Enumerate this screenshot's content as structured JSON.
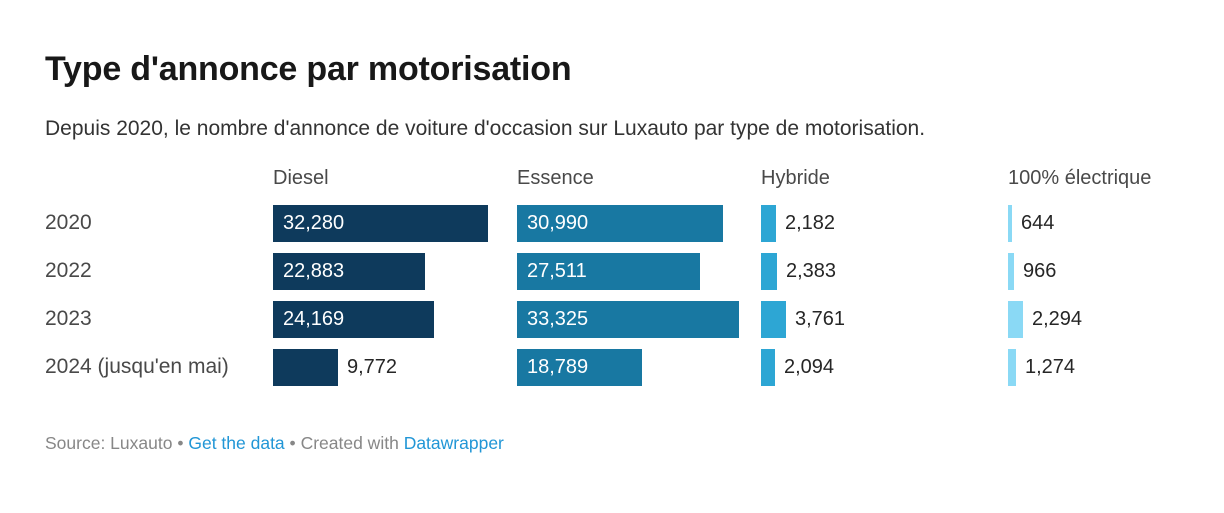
{
  "title": "Type d'annonce par motorisation",
  "subtitle": "Depuis 2020, le nombre d'annonce de voiture d'occasion sur Luxauto par type de motorisation.",
  "footer": {
    "source_text": "Source: Luxauto",
    "separator": "•",
    "get_data_link": "Get the data",
    "created_with_text": "Created with",
    "datawrapper_link": "Datawrapper"
  },
  "colors": {
    "title": "#181818",
    "subtitle": "#333333",
    "row_label": "#494949",
    "column_header": "#494949",
    "value_inside": "#ffffff",
    "value_outside": "#262626",
    "footer_text": "#878787",
    "link_blue": "#2196d6",
    "diesel": "#0e3a5c",
    "essence": "#1878a2",
    "hybride": "#2da6d4",
    "electrique": "#8ad9f5"
  },
  "chart_data": {
    "type": "bar",
    "orientation": "horizontal",
    "title": "Type d'annonce par motorisation",
    "subtitle": "Depuis 2020, le nombre d'annonce de voiture d'occasion sur Luxauto par type de motorisation.",
    "categories": [
      "2020",
      "2022",
      "2023",
      "2024 (jusqu'en mai)"
    ],
    "series": [
      {
        "name": "Diesel",
        "color": "#0e3a5c",
        "values": [
          32280,
          22883,
          24169,
          9772
        ],
        "labels": [
          "32,280",
          "22,883",
          "24,169",
          "9,772"
        ]
      },
      {
        "name": "Essence",
        "color": "#1878a2",
        "values": [
          30990,
          27511,
          33325,
          18789
        ],
        "labels": [
          "30,990",
          "27,511",
          "33,325",
          "18,789"
        ]
      },
      {
        "name": "Hybride",
        "color": "#2da6d4",
        "values": [
          2182,
          2383,
          3761,
          2094
        ],
        "labels": [
          "2,182",
          "2,383",
          "3,761",
          "2,094"
        ]
      },
      {
        "name": "100% électrique",
        "color": "#8ad9f5",
        "values": [
          644,
          966,
          2294,
          1274
        ],
        "labels": [
          "644",
          "966",
          "2,294",
          "1,274"
        ]
      }
    ],
    "xmin": 0,
    "xmax": 33325,
    "grid": false,
    "legend_position": "column-headers",
    "value_labels_shown": true
  }
}
